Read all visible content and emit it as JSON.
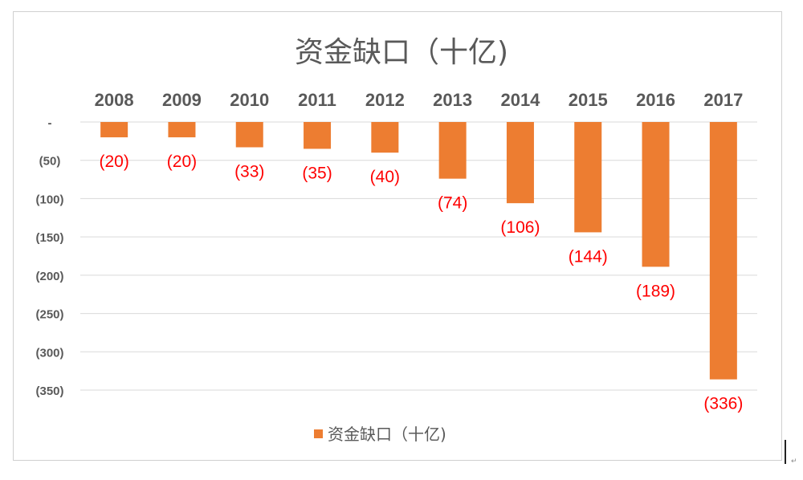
{
  "chart_data": {
    "type": "bar",
    "title": "资金缺口（十亿)",
    "categories": [
      "2008",
      "2009",
      "2010",
      "2011",
      "2012",
      "2013",
      "2014",
      "2015",
      "2016",
      "2017"
    ],
    "series": [
      {
        "name": "资金缺口（十亿)",
        "values": [
          -20,
          -20,
          -33,
          -35,
          -40,
          -74,
          -106,
          -144,
          -189,
          -336
        ]
      }
    ],
    "data_labels": [
      "(20)",
      "(20)",
      "(33)",
      "(35)",
      "(40)",
      "(74)",
      "(106)",
      "(144)",
      "(189)",
      "(336)"
    ],
    "y_ticks": [
      0,
      -50,
      -100,
      -150,
      -200,
      -250,
      -300,
      -350
    ],
    "y_tick_labels": [
      "-",
      "(50)",
      "(100)",
      "(150)",
      "(200)",
      "(250)",
      "(300)",
      "(350)"
    ],
    "ylim": [
      -350,
      0
    ],
    "grid": true,
    "legend_position": "bottom",
    "colors": {
      "bar": "#ED7D31",
      "data_label": "#FF0000",
      "grid": "#D9D9D9",
      "axis_text": "#595959"
    }
  }
}
